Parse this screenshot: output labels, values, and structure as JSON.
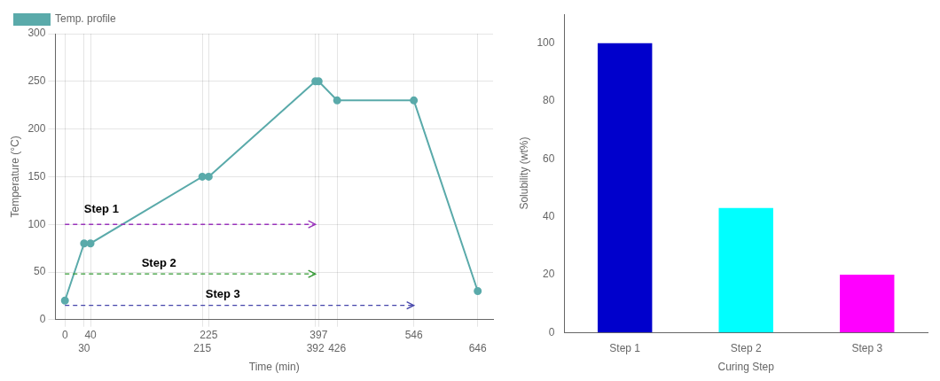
{
  "chart_data": [
    {
      "type": "line",
      "x": [
        0,
        30,
        40,
        215,
        225,
        392,
        397,
        426,
        546,
        646
      ],
      "series": [
        {
          "name": "Temp. profile",
          "color": "#5aaaaa",
          "marker": "circle",
          "values": [
            20,
            80,
            80,
            150,
            150,
            250,
            250,
            230,
            230,
            30
          ]
        }
      ],
      "xlabel": "Time (min)",
      "ylabel": "Temperature (°C)",
      "xlim": [
        -15,
        670
      ],
      "xticks": [
        0,
        30,
        40,
        215,
        225,
        392,
        397,
        426,
        546,
        646
      ],
      "ylim": [
        0,
        300
      ],
      "yticks": [
        0,
        50,
        100,
        150,
        200,
        250,
        300
      ],
      "grid": true,
      "legend": "upper left",
      "annotations": [
        {
          "text": "Step 1",
          "x_start": 0,
          "x_end": 392,
          "y": 100,
          "label_x": 30,
          "label_y": 112,
          "color": "#9933bb",
          "line_style": "dashed"
        },
        {
          "text": "Step 2",
          "x_start": 0,
          "x_end": 392,
          "y": 48,
          "label_x": 120,
          "label_y": 56,
          "color": "#339933",
          "line_style": "dashed"
        },
        {
          "text": "Step 3",
          "x_start": 0,
          "x_end": 546,
          "y": 15,
          "label_x": 220,
          "label_y": 23,
          "color": "#4444aa",
          "line_style": "dashed"
        }
      ]
    },
    {
      "type": "bar",
      "categories": [
        "Step 1",
        "Step 2",
        "Step 3"
      ],
      "values": [
        100,
        43,
        20
      ],
      "colors": [
        "#0000cc",
        "#00ffff",
        "#ff00ff"
      ],
      "xlabel": "Curing Step",
      "ylabel": "Solubility (wt%)",
      "ylim": [
        0,
        110
      ],
      "yticks": [
        0,
        20,
        40,
        60,
        80,
        100
      ],
      "grid": false
    }
  ]
}
